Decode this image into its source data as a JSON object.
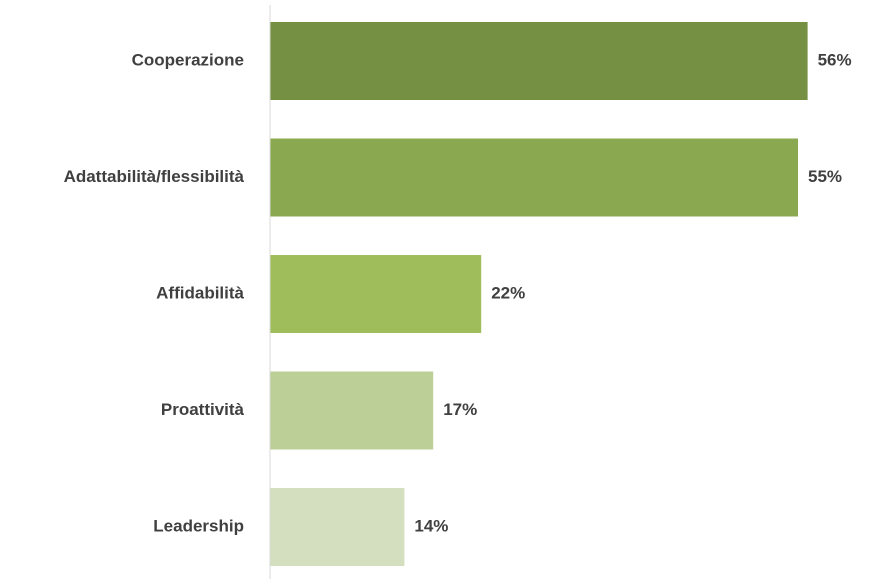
{
  "chart_data": {
    "type": "bar",
    "orientation": "horizontal",
    "title": "",
    "xlabel": "",
    "ylabel": "",
    "categories": [
      "Cooperazione",
      "Adattabilità/flessibilità",
      "Affidabilità",
      "Proattività",
      "Leadership"
    ],
    "values": [
      56,
      55,
      22,
      17,
      14
    ],
    "value_labels": [
      "56%",
      "55%",
      "22%",
      "17%",
      "14%"
    ],
    "unit": "%",
    "xlim": [
      0,
      60
    ],
    "grid": false,
    "legend": "none",
    "colors": [
      "#758f43",
      "#8aa84f",
      "#9fbd5a",
      "#bccf97",
      "#d3dfbf"
    ],
    "axis_color": "#d9d9d9"
  }
}
